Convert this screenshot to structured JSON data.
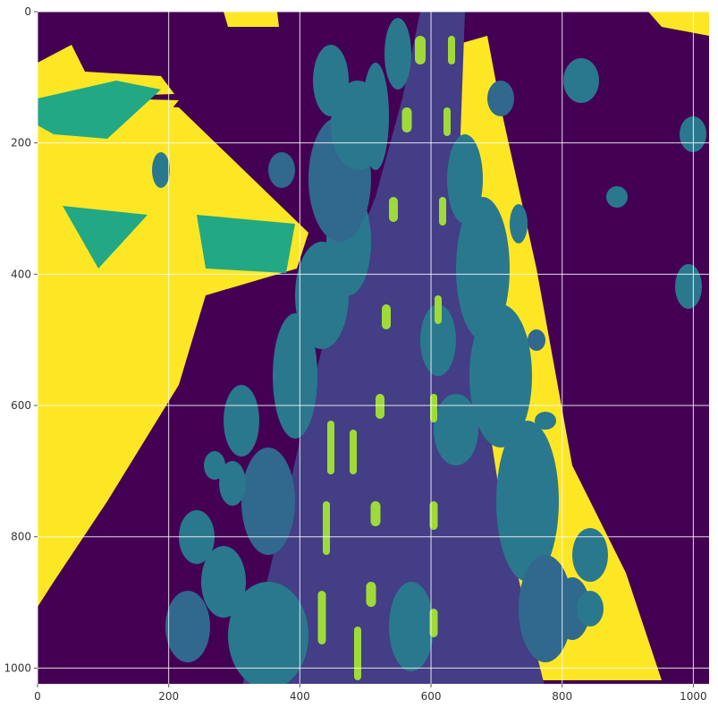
{
  "chart_data": {
    "type": "heatmap",
    "title": "",
    "xlabel": "",
    "ylabel": "",
    "xlim": [
      0,
      1024
    ],
    "ylim": [
      1024,
      0
    ],
    "x_ticks": [
      0,
      200,
      400,
      600,
      800,
      1000
    ],
    "y_ticks": [
      0,
      200,
      400,
      600,
      800,
      1000
    ],
    "x_tick_labels": [
      "0",
      "200",
      "400",
      "600",
      "800",
      "1000"
    ],
    "y_tick_labels": [
      "0",
      "200",
      "400",
      "600",
      "800",
      "1000"
    ],
    "grid": true,
    "colormap": "viridis",
    "colors": {
      "background": "#440154",
      "road": "#433e85",
      "marking": "#a0da39",
      "blob_teal": "#2a788e",
      "blob_dark": "#31688e",
      "sidewalk": "#fde725",
      "building": "#22a884"
    }
  }
}
